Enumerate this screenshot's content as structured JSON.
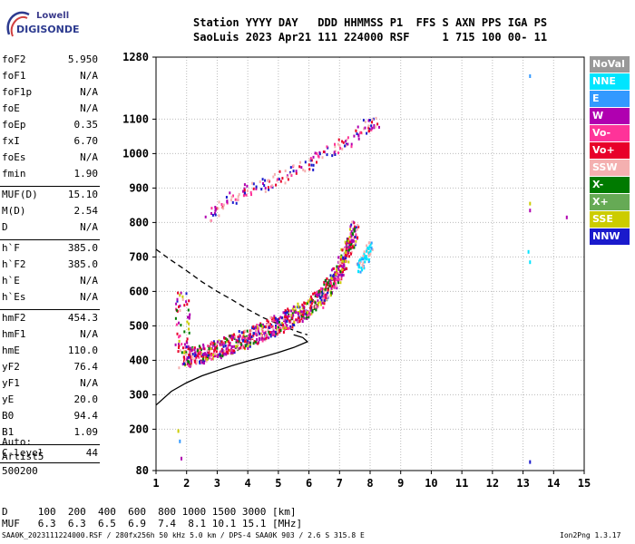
{
  "logo": {
    "line1": "Lowell",
    "line2": "DIGISONDE"
  },
  "header": {
    "line1": "Station YYYY DAY   DDD HHMMSS P1  FFS S AXN PPS IGA PS",
    "line2": "SaoLuis 2023 Apr21 111 224000 RSF     1 715 100 00- 11"
  },
  "params": [
    {
      "k": "foF2",
      "v": "5.950"
    },
    {
      "k": "foF1",
      "v": "N/A"
    },
    {
      "k": "foF1p",
      "v": "N/A"
    },
    {
      "k": "foE",
      "v": "N/A"
    },
    {
      "k": "foEp",
      "v": "0.35"
    },
    {
      "k": "fxI",
      "v": "6.70"
    },
    {
      "k": "foEs",
      "v": "N/A"
    },
    {
      "k": "fmin",
      "v": "1.90"
    },
    {
      "k": "MUF(D)",
      "v": "15.10"
    },
    {
      "k": "M(D)",
      "v": "2.54"
    },
    {
      "k": "D",
      "v": "N/A"
    },
    {
      "k": "h`F",
      "v": "385.0"
    },
    {
      "k": "h`F2",
      "v": "385.0"
    },
    {
      "k": "h`E",
      "v": "N/A"
    },
    {
      "k": "h`Es",
      "v": "N/A"
    },
    {
      "k": "hmF2",
      "v": "454.3"
    },
    {
      "k": "hmF1",
      "v": "N/A"
    },
    {
      "k": "hmE",
      "v": "110.0"
    },
    {
      "k": "yF2",
      "v": "76.4"
    },
    {
      "k": "yF1",
      "v": "N/A"
    },
    {
      "k": "yE",
      "v": "20.0"
    },
    {
      "k": "B0",
      "v": "94.4"
    },
    {
      "k": "B1",
      "v": "1.09"
    },
    {
      "k": "C-level",
      "v": "44"
    }
  ],
  "auto": {
    "line1": "Auto:",
    "line2": "Artist5",
    "line3": "500200"
  },
  "bottom_table": {
    "d_row": "D     100  200  400  600  800 1000 1500 3000 [km]",
    "muf_row": "MUF   6.3  6.3  6.5  6.9  7.4  8.1 10.1 15.1 [MHz]"
  },
  "footer": {
    "left": "SAA0K_2023111224000.RSF / 280fx256h 50 kHz 5.0 km / DPS-4 SAA0K 903 / 2.6 S 315.8 E",
    "right": "Ion2Png 1.3.17"
  },
  "legend": [
    {
      "label": "NoVal",
      "color": "#999999"
    },
    {
      "label": "NNE",
      "color": "#00e5ff"
    },
    {
      "label": "E",
      "color": "#3399ff"
    },
    {
      "label": "W",
      "color": "#b000b0"
    },
    {
      "label": "Vo-",
      "color": "#ff3399"
    },
    {
      "label": "Vo+",
      "color": "#e8002a"
    },
    {
      "label": "SSW",
      "color": "#f4b0b0"
    },
    {
      "label": "X-",
      "color": "#007a00"
    },
    {
      "label": "X+",
      "color": "#66aa55"
    },
    {
      "label": "SSE",
      "color": "#cccc00"
    },
    {
      "label": "NNW",
      "color": "#1a1acc"
    }
  ],
  "chart_data": {
    "type": "scatter",
    "x_ticks": [
      "1",
      "2",
      "3",
      "4",
      "5",
      "6",
      "7",
      "8",
      "9",
      "10",
      "11",
      "12",
      "13",
      "14",
      "15"
    ],
    "y_ticks": [
      "80",
      "200",
      "300",
      "400",
      "500",
      "600",
      "700",
      "800",
      "900",
      "1000",
      "1100",
      "1280"
    ],
    "xlim": [
      1,
      15
    ],
    "ylim": [
      80,
      1280
    ],
    "grid": true,
    "profile_solid": [
      [
        1.0,
        270
      ],
      [
        1.5,
        310
      ],
      [
        2.0,
        335
      ],
      [
        2.5,
        355
      ],
      [
        3.0,
        370
      ],
      [
        3.5,
        385
      ],
      [
        4.0,
        398
      ],
      [
        4.5,
        410
      ],
      [
        5.0,
        423
      ],
      [
        5.5,
        437
      ],
      [
        5.95,
        454
      ],
      [
        5.8,
        466
      ],
      [
        5.5,
        474
      ]
    ],
    "profile_dashed": [
      [
        1.0,
        722
      ],
      [
        1.5,
        690
      ],
      [
        2.0,
        660
      ],
      [
        2.5,
        628
      ],
      [
        3.0,
        600
      ],
      [
        3.5,
        575
      ],
      [
        4.0,
        548
      ],
      [
        4.5,
        524
      ],
      [
        5.0,
        505
      ],
      [
        5.5,
        487
      ],
      [
        5.95,
        474
      ]
    ],
    "trace_o": [
      [
        1.9,
        415
      ],
      [
        2.3,
        420
      ],
      [
        2.7,
        428
      ],
      [
        3.1,
        440
      ],
      [
        3.5,
        452
      ],
      [
        3.9,
        466
      ],
      [
        4.3,
        480
      ],
      [
        4.7,
        496
      ],
      [
        5.1,
        514
      ],
      [
        5.5,
        532
      ],
      [
        5.9,
        552
      ],
      [
        6.3,
        582
      ],
      [
        6.6,
        612
      ],
      [
        6.9,
        650
      ],
      [
        7.1,
        690
      ],
      [
        7.3,
        740
      ],
      [
        7.5,
        790
      ]
    ],
    "trace_x": [
      [
        7.6,
        670
      ],
      [
        7.8,
        700
      ],
      [
        8.0,
        740
      ]
    ],
    "trace_2hop": [
      [
        2.7,
        820
      ],
      [
        3.2,
        860
      ],
      [
        3.8,
        890
      ],
      [
        4.4,
        910
      ],
      [
        5.0,
        930
      ],
      [
        5.6,
        955
      ],
      [
        6.2,
        985
      ],
      [
        6.8,
        1015
      ],
      [
        7.4,
        1050
      ],
      [
        7.9,
        1085
      ],
      [
        8.2,
        1100
      ]
    ],
    "isolated": [
      [
        1.7,
        200
      ],
      [
        1.75,
        170
      ],
      [
        1.8,
        120
      ],
      [
        13.2,
        1230
      ],
      [
        13.2,
        860
      ],
      [
        13.2,
        840
      ],
      [
        13.15,
        720
      ],
      [
        13.2,
        690
      ],
      [
        13.2,
        110
      ],
      [
        14.4,
        820
      ]
    ]
  }
}
